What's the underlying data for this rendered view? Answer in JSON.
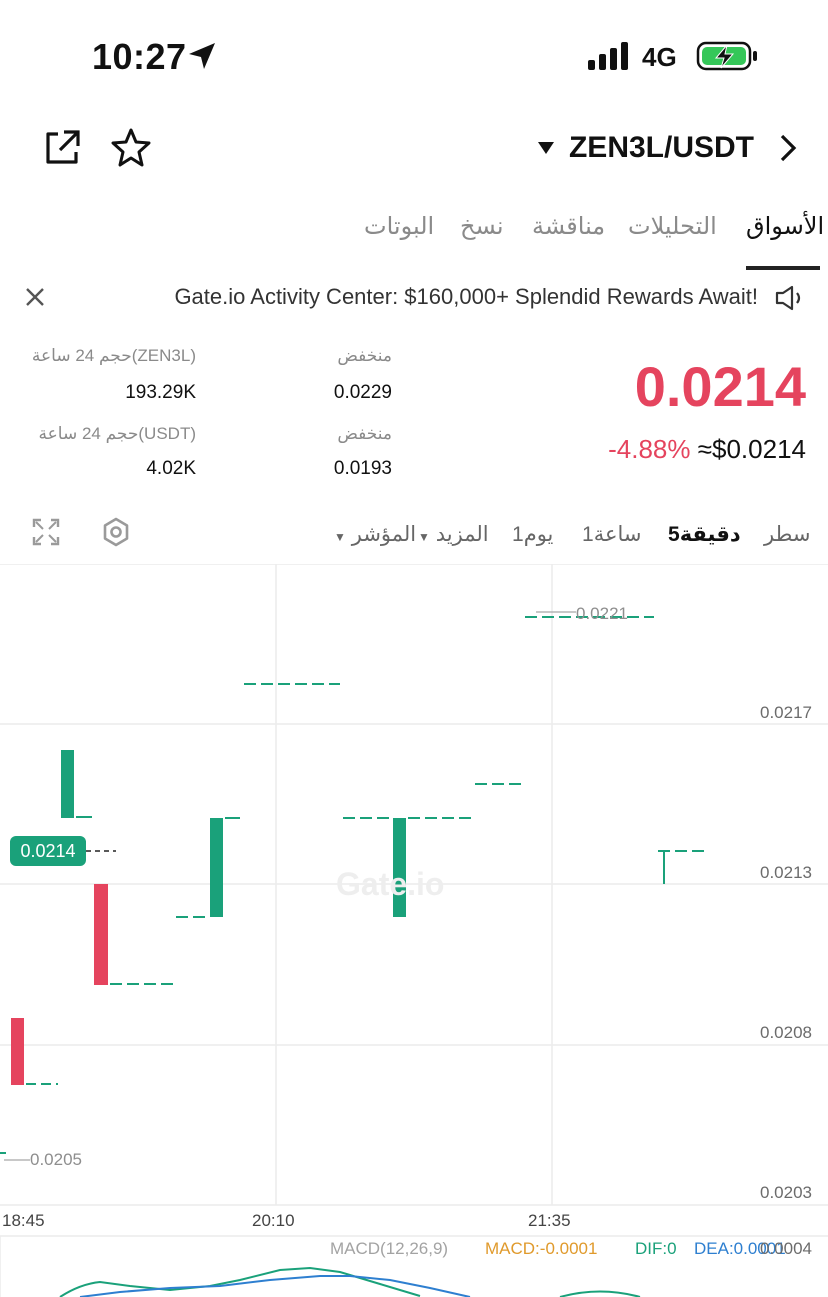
{
  "status": {
    "time": "10:27",
    "network": "4G"
  },
  "nav": {
    "pair": "ZEN3L/USDT"
  },
  "tabs": [
    "الأسواق",
    "التحليلات",
    "مناقشة",
    "نسخ",
    "البوتات"
  ],
  "banner": {
    "text": "Gate.io Activity Center: $160,000+ Splendid Rewards Await!"
  },
  "stats": {
    "low_label_1": "منخفض",
    "low_value_1": "0.0229",
    "vol_label_1": "حجم 24 ساعة(ZEN3L)",
    "vol_value_1": "193.29K",
    "low_label_2": "منخفض",
    "low_value_2": "0.0193",
    "vol_label_2": "حجم 24 ساعة(USDT)",
    "vol_value_2": "4.02K"
  },
  "price": {
    "last": "0.0214",
    "change": "-4.88%",
    "usd": "≈$0.0214"
  },
  "toolbar": {
    "line": "سطر",
    "m5": "5دقيقة",
    "h1": "1ساعة",
    "d1": "1يوم",
    "more": "المزيد",
    "indicator": "المؤشر"
  },
  "chart_data": {
    "type": "candlestick",
    "y_ticks": [
      "0.0217",
      "0.0213",
      "0.0208",
      "0.0203"
    ],
    "x_ticks": [
      "18:45",
      "20:10",
      "21:35"
    ],
    "current_price": "0.0214",
    "high_marker": "0.0221",
    "low_marker": "0.0205",
    "watermark": "Gate.io",
    "candles": [
      {
        "open": 0.0206,
        "close": 0.021,
        "direction": "down"
      },
      {
        "open": 0.0216,
        "close": 0.0214,
        "direction": "up"
      },
      {
        "open": 0.021,
        "close": 0.0212,
        "direction": "down"
      },
      {
        "open": 0.0214,
        "close": 0.0212,
        "direction": "up"
      },
      {
        "open": 0.0214,
        "close": 0.0212,
        "direction": "up"
      },
      {
        "open": 0.0213,
        "close": 0.0213,
        "direction": "up"
      }
    ],
    "colors": {
      "up": "#1aa17a",
      "down": "#e5445e",
      "grid": "#ececec"
    }
  },
  "macd": {
    "title": "MACD(12,26,9)",
    "macd": "MACD:-0.0001",
    "dif": "DIF:0",
    "dea": "DEA:0.0001",
    "axis": "0.0004",
    "colors": {
      "macd": "#e09a2c",
      "dif": "#1aa17a",
      "dea": "#2e7fd0"
    }
  }
}
